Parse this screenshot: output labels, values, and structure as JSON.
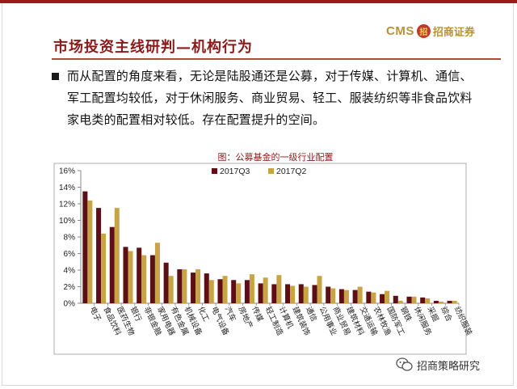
{
  "header": {
    "title": "市场投资主线研判—机构行为",
    "logo_text": "CMS",
    "logo_mark": "招",
    "logo_cn": "招商证券"
  },
  "body": {
    "paragraph": "而从配置的角度来看，无论是陆股通还是公募，对于传媒、计算机、通信、军工配置均较低，对于休闲服务、商业贸易、轻工、服装纺织等非食品饮料家电类的配置相对较低。存在配置提升的空间。"
  },
  "watermark": {
    "text": "招商策略研究"
  },
  "chart_data": {
    "type": "bar",
    "title": "图：公募基金的一级行业配置",
    "categories": [
      "电子",
      "食品饮料",
      "医药生物",
      "银行",
      "非银金融",
      "家用电器",
      "有色金属",
      "机械设备",
      "化工",
      "电气设备",
      "汽车",
      "房地产",
      "传媒",
      "轻工制造",
      "计算机",
      "建筑装饰",
      "通信",
      "公用事业",
      "商业贸易",
      "建筑材料",
      "交通运输",
      "农林牧渔",
      "国防军工",
      "钢铁",
      "休闲服务",
      "采掘",
      "综合",
      "纺织服装"
    ],
    "series": [
      {
        "name": "2017Q3",
        "color": "#5c0f14",
        "values": [
          13.5,
          11.5,
          9.2,
          6.8,
          6.7,
          5.8,
          4.9,
          4.1,
          3.7,
          3.6,
          2.9,
          2.8,
          2.8,
          2.4,
          2.3,
          2.3,
          2.3,
          2.2,
          2.0,
          1.7,
          1.6,
          1.4,
          1.1,
          0.9,
          0.8,
          0.7,
          0.3,
          0.3
        ]
      },
      {
        "name": "2017Q2",
        "color": "#c9a447",
        "values": [
          12.4,
          8.4,
          11.5,
          6.3,
          5.8,
          7.3,
          3.3,
          4.1,
          4.1,
          2.8,
          3.3,
          2.4,
          3.5,
          3.1,
          3.4,
          2.1,
          2.0,
          3.3,
          1.8,
          1.6,
          2.0,
          1.3,
          1.5,
          0.3,
          0.8,
          0.6,
          0.2,
          0.3
        ]
      }
    ],
    "ylim": [
      0,
      16
    ],
    "yticks": [
      "0%",
      "2%",
      "4%",
      "6%",
      "8%",
      "10%",
      "12%",
      "14%",
      "16%"
    ],
    "legend": "top-center",
    "grid": false
  }
}
